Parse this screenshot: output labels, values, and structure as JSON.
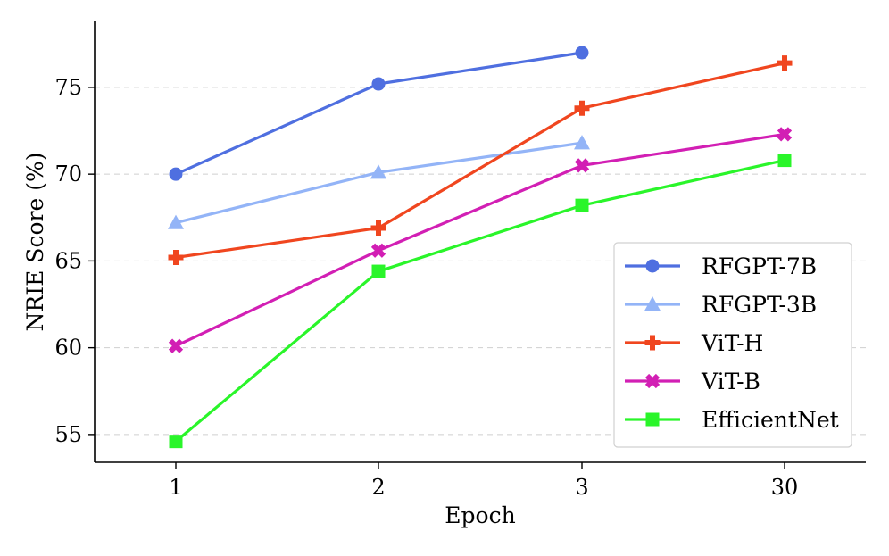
{
  "chart_data": {
    "type": "line",
    "title": "",
    "xlabel": "Epoch",
    "ylabel": "NRIE Score (%)",
    "categories": [
      "1",
      "2",
      "3",
      "30"
    ],
    "ylim": [
      53.4,
      78.8
    ],
    "yticks": [
      55,
      60,
      65,
      70,
      75
    ],
    "grid": "horizontal-dashed",
    "legend_position": "bottom-right",
    "series": [
      {
        "name": "RFGPT-7B",
        "color": "#4f6fe0",
        "marker": "circle",
        "values": [
          70.0,
          75.2,
          77.0,
          null
        ]
      },
      {
        "name": "RFGPT-3B",
        "color": "#93b4f7",
        "marker": "triangle",
        "values": [
          67.2,
          70.1,
          71.8,
          null
        ]
      },
      {
        "name": "ViT-H",
        "color": "#f0461f",
        "marker": "plus",
        "values": [
          65.2,
          66.9,
          73.8,
          76.4
        ]
      },
      {
        "name": "ViT-B",
        "color": "#d21fb4",
        "marker": "x",
        "values": [
          60.1,
          65.6,
          70.5,
          72.3
        ]
      },
      {
        "name": "EfficientNet",
        "color": "#2af52a",
        "marker": "square",
        "values": [
          54.6,
          64.4,
          68.2,
          70.8
        ]
      }
    ]
  }
}
